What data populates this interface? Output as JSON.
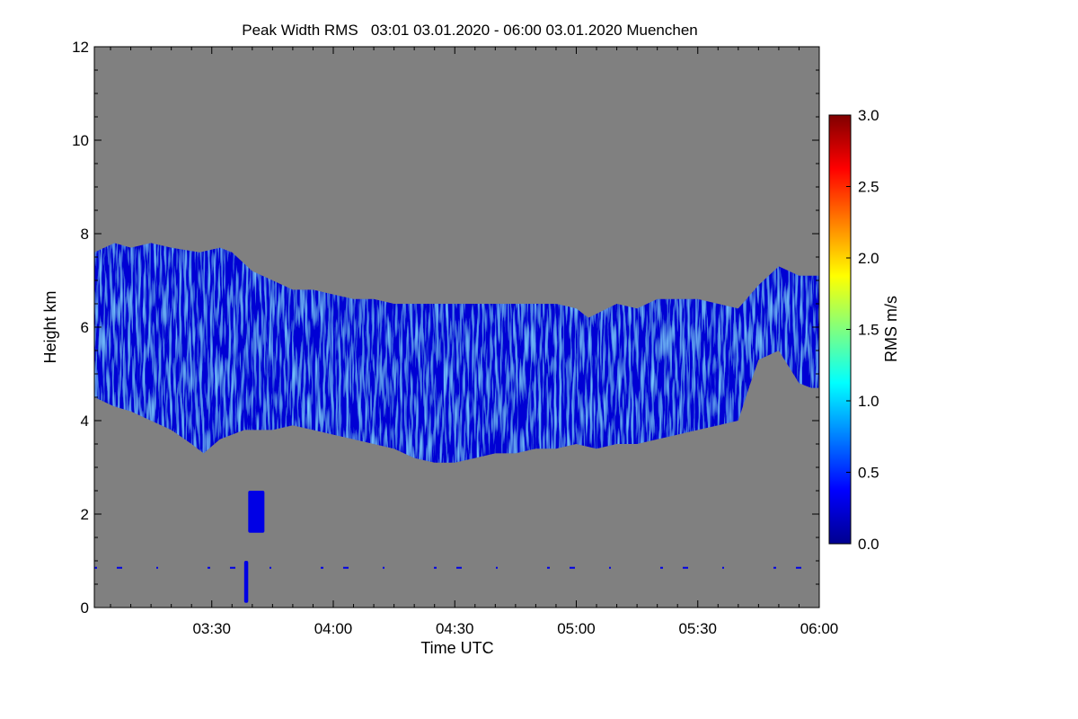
{
  "chart_data": {
    "type": "heatmap",
    "title": "Peak Width RMS   03:01 03.01.2020 - 06:00 03.01.2020 Muenchen",
    "xlabel": "Time UTC",
    "ylabel": "Height km",
    "x_range_minutes_utc": [
      181,
      360
    ],
    "y_range_km": [
      0,
      12
    ],
    "x_ticks": [
      {
        "minute": 210,
        "label": "03:30"
      },
      {
        "minute": 240,
        "label": "04:00"
      },
      {
        "minute": 270,
        "label": "04:30"
      },
      {
        "minute": 300,
        "label": "05:00"
      },
      {
        "minute": 330,
        "label": "05:30"
      },
      {
        "minute": 360,
        "label": "06:00"
      }
    ],
    "y_ticks": [
      0,
      2,
      4,
      6,
      8,
      10,
      12
    ],
    "background_color": "#808080",
    "colorbar": {
      "label": "RMS m/s",
      "range": [
        0.0,
        3.0
      ],
      "ticks": [
        "0.0",
        "0.5",
        "1.0",
        "1.5",
        "2.0",
        "2.5",
        "3.0"
      ],
      "colormap": "jet"
    },
    "cloud_layer": {
      "typical_value": 0.25,
      "enhanced_value": 0.6,
      "top_km": [
        [
          181,
          7.6
        ],
        [
          186,
          7.8
        ],
        [
          190,
          7.7
        ],
        [
          195,
          7.8
        ],
        [
          200,
          7.7
        ],
        [
          207,
          7.6
        ],
        [
          212,
          7.7
        ],
        [
          215,
          7.6
        ],
        [
          220,
          7.2
        ],
        [
          225,
          7.0
        ],
        [
          230,
          6.8
        ],
        [
          235,
          6.8
        ],
        [
          240,
          6.7
        ],
        [
          245,
          6.6
        ],
        [
          250,
          6.6
        ],
        [
          255,
          6.5
        ],
        [
          260,
          6.5
        ],
        [
          265,
          6.5
        ],
        [
          270,
          6.5
        ],
        [
          275,
          6.5
        ],
        [
          280,
          6.5
        ],
        [
          285,
          6.5
        ],
        [
          290,
          6.5
        ],
        [
          295,
          6.5
        ],
        [
          300,
          6.4
        ],
        [
          303,
          6.2
        ],
        [
          310,
          6.5
        ],
        [
          315,
          6.4
        ],
        [
          320,
          6.6
        ],
        [
          325,
          6.6
        ],
        [
          330,
          6.6
        ],
        [
          335,
          6.5
        ],
        [
          340,
          6.4
        ],
        [
          345,
          6.9
        ],
        [
          350,
          7.3
        ],
        [
          355,
          7.1
        ],
        [
          360,
          7.1
        ]
      ],
      "base_km": [
        [
          181,
          4.5
        ],
        [
          186,
          4.3
        ],
        [
          190,
          4.2
        ],
        [
          195,
          4.0
        ],
        [
          200,
          3.8
        ],
        [
          205,
          3.5
        ],
        [
          208,
          3.3
        ],
        [
          212,
          3.6
        ],
        [
          218,
          3.8
        ],
        [
          225,
          3.8
        ],
        [
          230,
          3.9
        ],
        [
          235,
          3.8
        ],
        [
          240,
          3.7
        ],
        [
          245,
          3.6
        ],
        [
          250,
          3.5
        ],
        [
          255,
          3.4
        ],
        [
          260,
          3.2
        ],
        [
          265,
          3.1
        ],
        [
          270,
          3.1
        ],
        [
          275,
          3.2
        ],
        [
          280,
          3.3
        ],
        [
          285,
          3.3
        ],
        [
          290,
          3.4
        ],
        [
          295,
          3.4
        ],
        [
          300,
          3.5
        ],
        [
          305,
          3.4
        ],
        [
          310,
          3.5
        ],
        [
          315,
          3.5
        ],
        [
          320,
          3.6
        ],
        [
          325,
          3.7
        ],
        [
          330,
          3.8
        ],
        [
          335,
          3.9
        ],
        [
          340,
          4.0
        ],
        [
          343,
          4.8
        ],
        [
          345,
          5.3
        ],
        [
          350,
          5.5
        ],
        [
          355,
          4.8
        ],
        [
          358,
          4.7
        ],
        [
          360,
          4.7
        ]
      ]
    },
    "low_echoes": [
      {
        "x_minutes": [
          218,
          219
        ],
        "height_km": [
          0.1,
          1.0
        ],
        "value": 0.3
      },
      {
        "x_minutes": [
          219,
          223
        ],
        "height_km": [
          1.6,
          2.5
        ],
        "value": 0.3
      },
      {
        "x_minutes": [
          181,
          360
        ],
        "height_km": [
          0.8,
          0.9
        ],
        "value": 0.3
      }
    ]
  }
}
